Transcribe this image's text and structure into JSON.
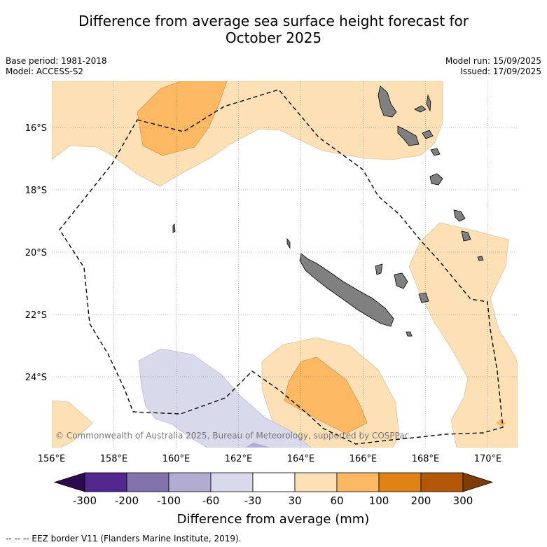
{
  "title_line1": "Difference from average sea surface height forecast for",
  "title_line2": "October 2025",
  "meta_left": {
    "base_period": "Base period: 1981-2018",
    "model": "Model: ACCESS-S2"
  },
  "meta_right": {
    "model_run": "Model run: 15/09/2025",
    "issued": "Issued: 17/09/2025"
  },
  "lat_labels": [
    "16°S",
    "18°S",
    "20°S",
    "22°S",
    "24°S"
  ],
  "lat_values": [
    -16,
    -18,
    -20,
    -22,
    -24
  ],
  "lon_labels": [
    "156°E",
    "158°E",
    "160°E",
    "162°E",
    "164°E",
    "166°E",
    "168°E",
    "170°E"
  ],
  "lon_values": [
    156,
    158,
    160,
    162,
    164,
    166,
    168,
    170
  ],
  "copyright": "© Commonwealth of Australia 2025, Bureau of Meteorology, supported by COSPPac",
  "colorbar": {
    "title": "Difference from average (mm)",
    "tick_labels": [
      "-300",
      "-200",
      "-100",
      "-60",
      "-30",
      "30",
      "60",
      "100",
      "200",
      "300"
    ],
    "colors": [
      "#2d0a4e",
      "#54278f",
      "#8073ac",
      "#b2abd2",
      "#d8daeb",
      "#ffffff",
      "#fee0b6",
      "#fdb863",
      "#e08214",
      "#b35806",
      "#7f3b08"
    ]
  },
  "footnote": "--  --  -- EEZ border V11 (Flanders Marine Institute, 2019).",
  "colors": {
    "land": "#808080",
    "eez": "#000000",
    "grid": "#777777"
  }
}
